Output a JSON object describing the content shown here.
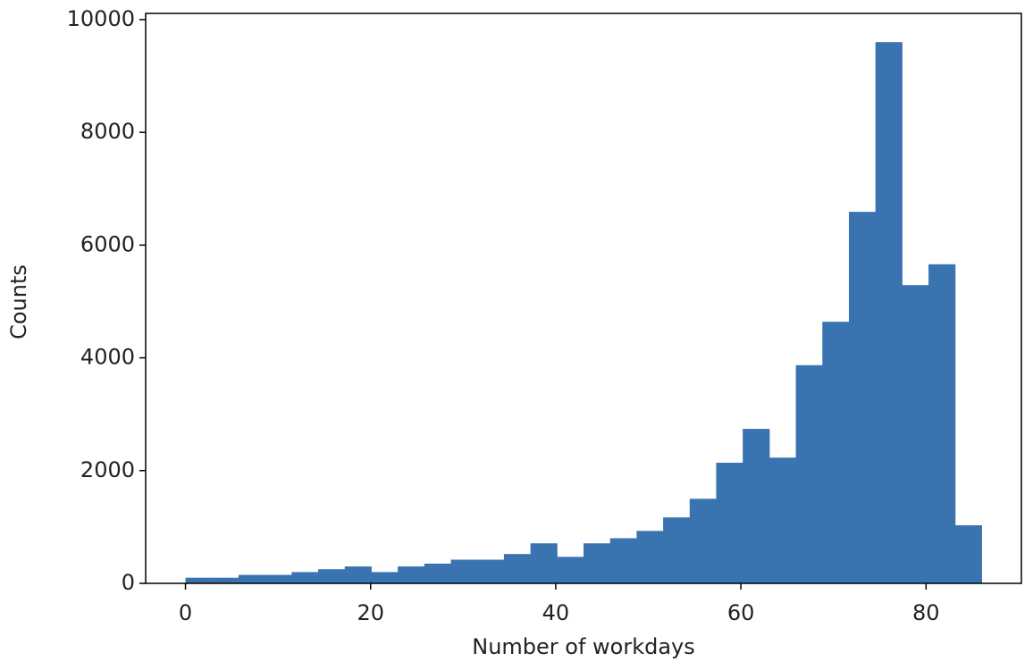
{
  "chart_data": {
    "type": "histogram",
    "xlabel": "Number of workdays",
    "ylabel": "Counts",
    "bins": [
      0,
      2.867,
      5.733,
      8.6,
      11.467,
      14.333,
      17.2,
      20.067,
      22.933,
      25.8,
      28.667,
      31.533,
      34.4,
      37.267,
      40.133,
      43,
      45.867,
      48.733,
      51.6,
      54.467,
      57.333,
      60.2,
      63.067,
      65.933,
      68.8,
      71.667,
      74.533,
      77.4,
      80.267,
      83.133,
      86
    ],
    "values": [
      100,
      100,
      150,
      150,
      200,
      250,
      300,
      200,
      300,
      350,
      420,
      420,
      520,
      710,
      470,
      710,
      800,
      930,
      1170,
      1500,
      2140,
      2740,
      2230,
      3870,
      4640,
      6590,
      9600,
      5290,
      5660,
      1030
    ],
    "color": "#3a74b0",
    "xlim": [
      -4.3,
      90.3
    ],
    "ylim": [
      0,
      10110
    ],
    "xticks": [
      0,
      20,
      40,
      60,
      80
    ],
    "yticks": [
      0,
      2000,
      4000,
      6000,
      8000,
      10000
    ],
    "grid": false
  }
}
